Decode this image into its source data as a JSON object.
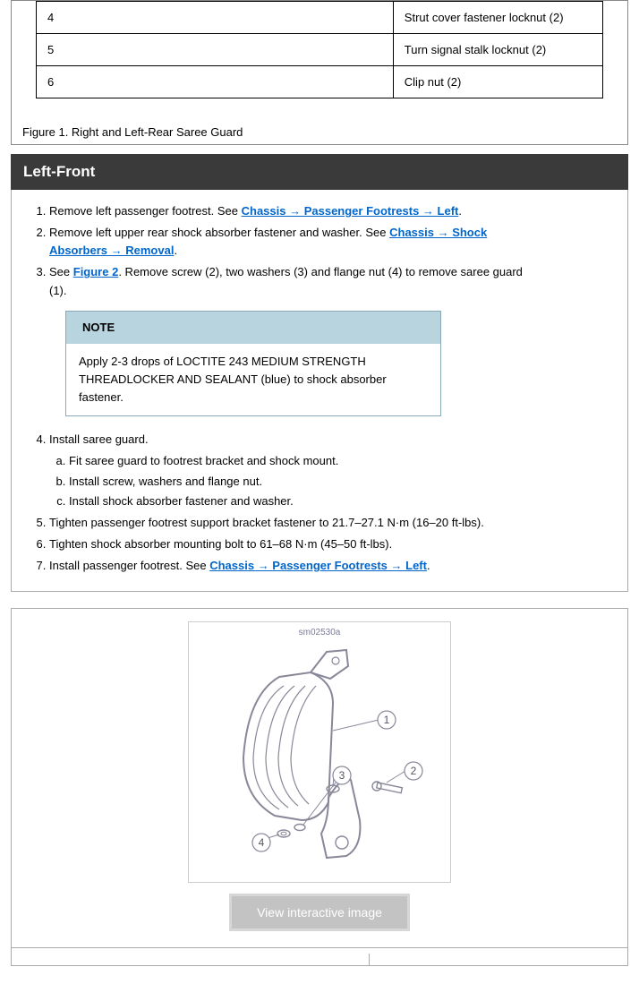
{
  "parts_table": {
    "rows": [
      {
        "num": "4",
        "desc": "Strut cover fastener locknut (2)"
      },
      {
        "num": "5",
        "desc": "Turn signal stalk locknut (2)"
      },
      {
        "num": "6",
        "desc": "Clip nut (2)"
      }
    ]
  },
  "figure1_caption": "Figure 1. Right and Left-Rear Saree Guard",
  "section_title": "Left-Front",
  "steps": {
    "s1_a": "Remove left passenger footrest. See ",
    "s1_link": "Chassis → Passenger Footrests → Left",
    "s1_b": ".",
    "s2_a": "Remove left upper rear shock absorber fastener and washer. See ",
    "s2_link": "Chassis → Shock Absorbers → Removal",
    "s2_b": ".",
    "s3_a": "See ",
    "s3_link": "Figure 2",
    "s3_b": ". Remove screw (2), two washers (3) and flange nut (4) to remove saree guard (1).",
    "note_title": "NOTE",
    "note_body": "Apply 2-3 drops of LOCTITE 243 MEDIUM STRENGTH THREADLOCKER AND SEALANT (blue) to shock absorber fastener.",
    "s4": "Install saree guard.",
    "s4a": "Fit saree guard to footrest bracket and shock mount.",
    "s4b": "Install screw, washers and flange nut.",
    "s4c": "Install shock absorber fastener and washer.",
    "s5": "Tighten passenger footrest support bracket fastener to 21.7–27.1 N·m (16–20 ft-lbs).",
    "s6": "Tighten shock absorber mounting bolt to 61–68 N·m (45–50 ft-lbs).",
    "s7_a": "Install passenger footrest. See ",
    "s7_link": "Chassis → Passenger Footrests → Left",
    "s7_b": "."
  },
  "diagram": {
    "code": "sm02530a",
    "callouts": [
      "1",
      "2",
      "3",
      "4"
    ],
    "stroke": "#888899",
    "text_color": "#555566"
  },
  "view_button": "View interactive image"
}
